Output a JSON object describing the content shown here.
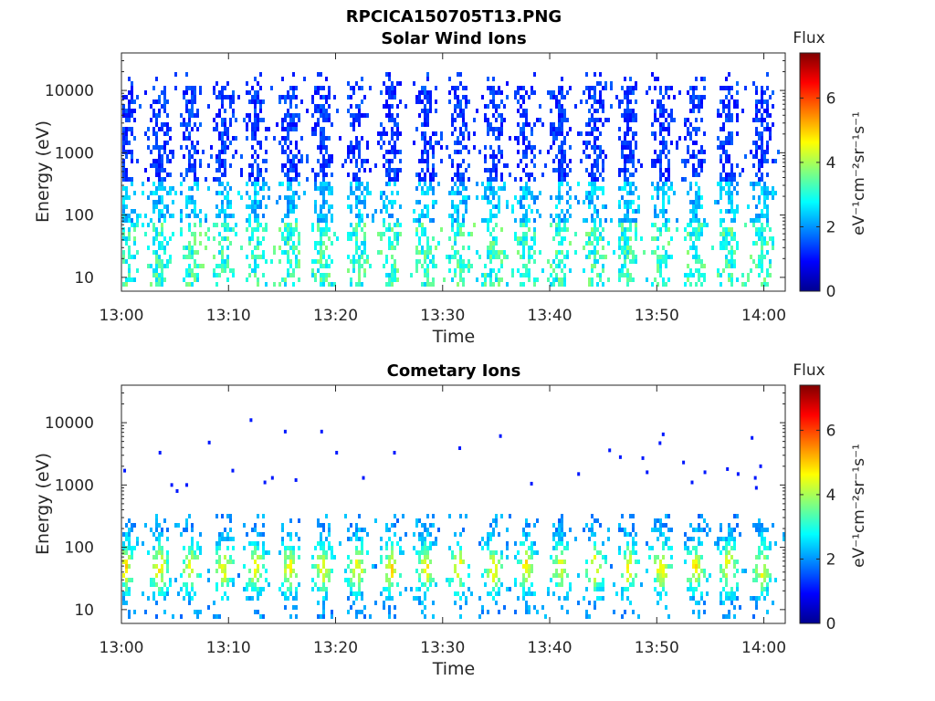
{
  "figure_title": "RPCICA150705T13.PNG",
  "chart_data": [
    {
      "type": "heatmap",
      "title": "Solar Wind Ions",
      "xlabel": "Time",
      "ylabel": "Energy (eV)",
      "x_ticks": [
        "13:00",
        "13:10",
        "13:20",
        "13:30",
        "13:40",
        "13:50",
        "14:00"
      ],
      "x_range": [
        "13:00",
        "14:02"
      ],
      "y_scale": "log",
      "y_ticks": [
        10,
        100,
        1000,
        10000
      ],
      "y_tick_labels": [
        "10",
        "100",
        "1000",
        "10000"
      ],
      "ylim": [
        6,
        40000
      ],
      "colorbar": {
        "label": "Flux",
        "unit_label": "eV⁻¹cm⁻²sr⁻¹s⁻¹",
        "range": [
          0,
          7.4
        ],
        "ticks": [
          "0",
          "2",
          "4",
          "6"
        ],
        "colormap": "jet"
      },
      "pulse_times_min": [
        0.3,
        3.4,
        6.4,
        9.4,
        12.4,
        15.6,
        18.7,
        21.9,
        25.1,
        28.3,
        31.4,
        34.6,
        37.7,
        40.9,
        44.1,
        47.2,
        50.3,
        53.5,
        56.6,
        59.7
      ],
      "pattern": {
        "energy_range_eV": [
          8,
          20000
        ],
        "typical_flux": {
          "high_energy": 1.2,
          "low_energy": 3.0
        }
      }
    },
    {
      "type": "heatmap",
      "title": "Cometary Ions",
      "xlabel": "Time",
      "ylabel": "Energy (eV)",
      "x_ticks": [
        "13:00",
        "13:10",
        "13:20",
        "13:30",
        "13:40",
        "13:50",
        "14:00"
      ],
      "x_range": [
        "13:00",
        "14:02"
      ],
      "y_scale": "log",
      "y_ticks": [
        10,
        100,
        1000,
        10000
      ],
      "y_tick_labels": [
        "10",
        "100",
        "1000",
        "10000"
      ],
      "ylim": [
        6,
        40000
      ],
      "colorbar": {
        "label": "Flux",
        "unit_label": "eV⁻¹cm⁻²sr⁻¹s⁻¹",
        "range": [
          0,
          7.4
        ],
        "ticks": [
          "0",
          "2",
          "4",
          "6"
        ],
        "colormap": "jet"
      },
      "pulse_times_min": [
        0.3,
        3.4,
        6.4,
        9.4,
        12.4,
        15.6,
        18.7,
        21.9,
        25.1,
        28.3,
        31.4,
        34.6,
        37.7,
        40.9,
        44.1,
        47.2,
        50.3,
        53.5,
        56.6,
        59.7
      ],
      "pattern": {
        "energy_range_eV": [
          8,
          400
        ],
        "typical_flux": {
          "peak_energy_eV": 50,
          "peak": 4.5
        }
      },
      "sparse_high_energy_points": [
        [
          0.3,
          1700
        ],
        [
          3.6,
          3300
        ],
        [
          4.7,
          1000
        ],
        [
          5.2,
          800
        ],
        [
          6.1,
          1000
        ],
        [
          8.2,
          4800
        ],
        [
          10.4,
          1700
        ],
        [
          12.1,
          11000
        ],
        [
          13.4,
          1100
        ],
        [
          14.1,
          1300
        ],
        [
          15.3,
          7200
        ],
        [
          16.3,
          1200
        ],
        [
          18.7,
          7200
        ],
        [
          20.1,
          3300
        ],
        [
          22.6,
          1300
        ],
        [
          25.5,
          3300
        ],
        [
          31.6,
          3900
        ],
        [
          35.4,
          6100
        ],
        [
          38.3,
          1050
        ],
        [
          42.7,
          1500
        ],
        [
          45.6,
          3600
        ],
        [
          46.6,
          2800
        ],
        [
          48.7,
          2700
        ],
        [
          49.1,
          1600
        ],
        [
          50.6,
          6500
        ],
        [
          50.3,
          4700
        ],
        [
          52.5,
          2300
        ],
        [
          53.3,
          1100
        ],
        [
          54.5,
          1600
        ],
        [
          56.6,
          1800
        ],
        [
          57.6,
          1500
        ],
        [
          58.9,
          5700
        ],
        [
          59.7,
          2000
        ],
        [
          59.2,
          1300
        ],
        [
          59.3,
          900
        ]
      ]
    }
  ]
}
